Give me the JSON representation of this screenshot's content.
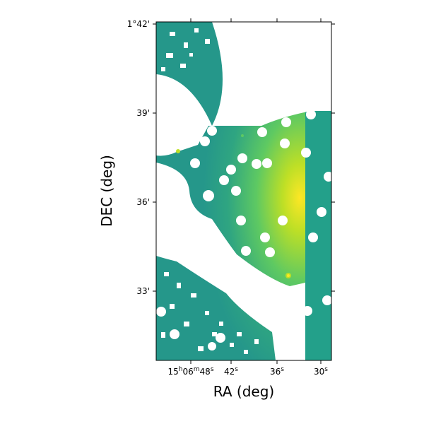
{
  "figure": {
    "xlabel": "RA (deg)",
    "ylabel": "DEC (deg)",
    "x_ticks": [
      {
        "base": "15",
        "sup1": "h",
        "mid": "06",
        "sup2": "m",
        "sec": "48",
        "sup3": "s"
      },
      {
        "base": "",
        "sup1": "",
        "mid": "",
        "sup2": "",
        "sec": "42",
        "sup3": "s"
      },
      {
        "base": "",
        "sup1": "",
        "mid": "",
        "sup2": "",
        "sec": "36",
        "sup3": "s"
      },
      {
        "base": "",
        "sup1": "",
        "mid": "",
        "sup2": "",
        "sec": "30",
        "sup3": "s"
      }
    ],
    "y_ticks": [
      "1°42'",
      "39'",
      "36'",
      "33'"
    ]
  },
  "colors": {
    "background": "#ffffff",
    "mask": "#ffffff",
    "map_low": "#21918c",
    "map_mid": "#35b779",
    "map_high": "#bddf26",
    "map_peak": "#fde725",
    "axis": "#000000"
  }
}
